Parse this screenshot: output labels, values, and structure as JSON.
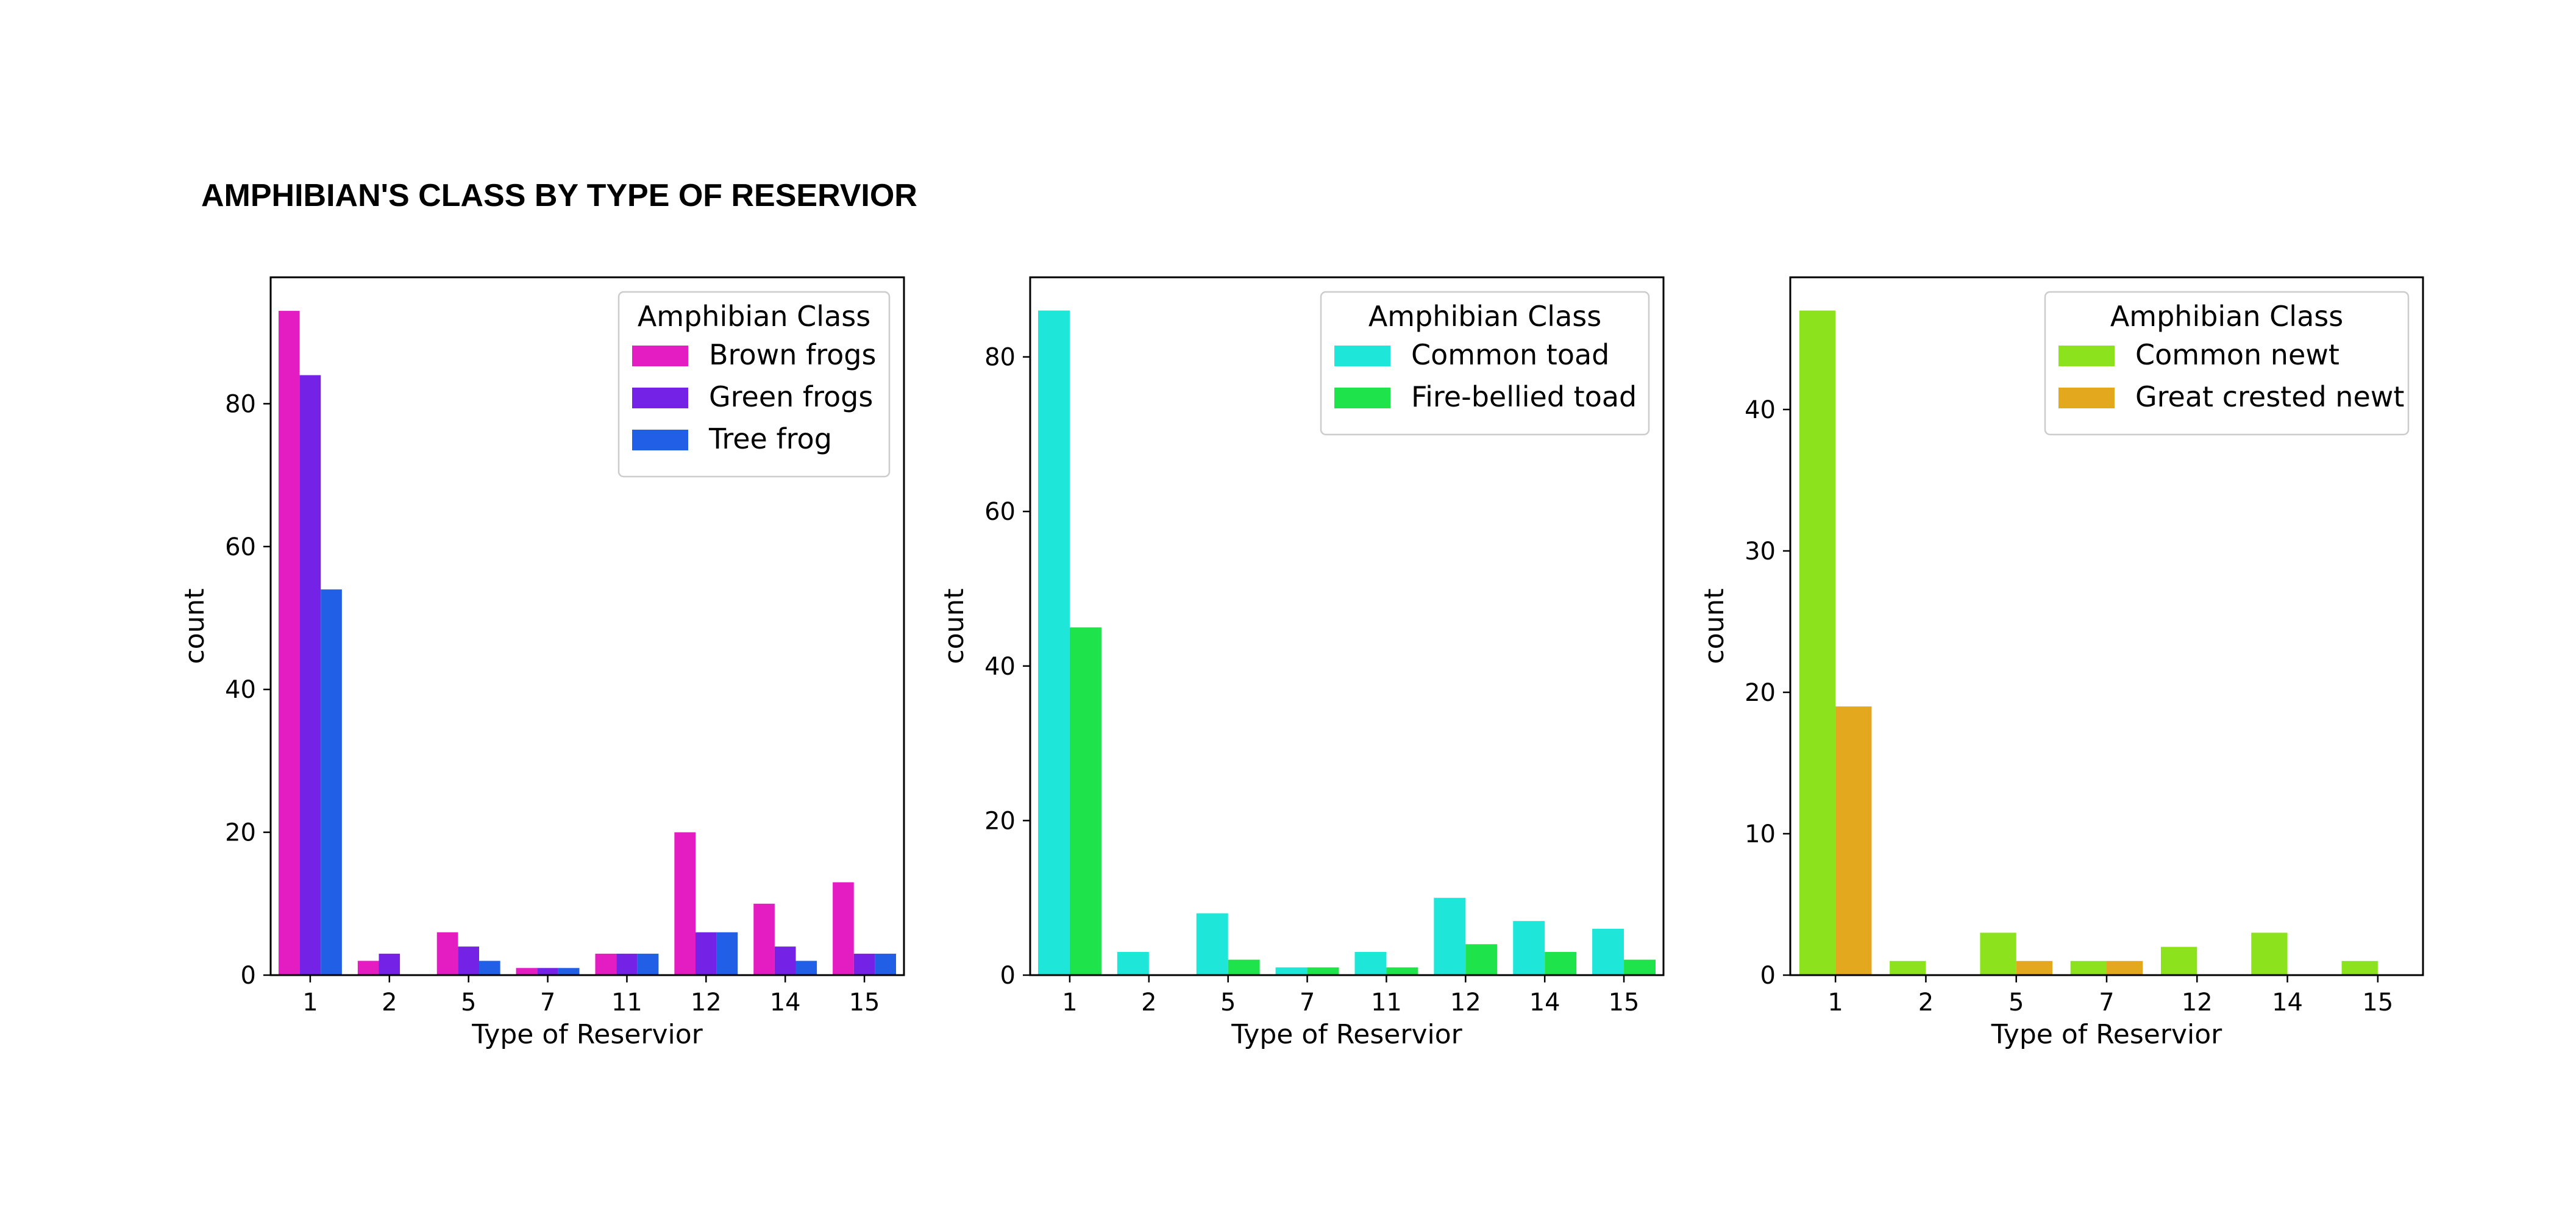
{
  "title": "AMPHIBIAN'S CLASS BY TYPE OF RESERVIOR",
  "chart_data": [
    {
      "type": "bar",
      "categories": [
        "1",
        "2",
        "5",
        "7",
        "11",
        "12",
        "14",
        "15"
      ],
      "xlabel": "Type of Reservior",
      "ylabel": "count",
      "ylim": [
        0,
        97.7
      ],
      "yticks": [
        "0",
        "20",
        "40",
        "60",
        "80"
      ],
      "legend": {
        "title": "Amphibian Class",
        "placement": "upper right"
      },
      "grid": false,
      "series": [
        {
          "name": "Brown frogs",
          "color": "#e31dc2",
          "values": [
            93,
            2,
            6,
            1,
            3,
            20,
            10,
            13
          ]
        },
        {
          "name": "Green frogs",
          "color": "#7422e5",
          "values": [
            84,
            3,
            4,
            1,
            3,
            6,
            4,
            3
          ]
        },
        {
          "name": "Tree frog",
          "color": "#215fe6",
          "values": [
            54,
            0,
            2,
            1,
            3,
            6,
            2,
            3
          ]
        }
      ]
    },
    {
      "type": "bar",
      "categories": [
        "1",
        "2",
        "5",
        "7",
        "11",
        "12",
        "14",
        "15"
      ],
      "xlabel": "Type of Reservior",
      "ylabel": "count",
      "ylim": [
        0,
        90.3
      ],
      "yticks": [
        "0",
        "20",
        "40",
        "60",
        "80"
      ],
      "legend": {
        "title": "Amphibian Class",
        "placement": "upper right"
      },
      "grid": false,
      "series": [
        {
          "name": "Common toad",
          "color": "#1ee6d9",
          "values": [
            86,
            3,
            8,
            1,
            3,
            10,
            7,
            6
          ]
        },
        {
          "name": "Fire-bellied toad",
          "color": "#1ee34b",
          "values": [
            45,
            0,
            2,
            1,
            1,
            4,
            3,
            2
          ]
        }
      ]
    },
    {
      "type": "bar",
      "categories": [
        "1",
        "2",
        "5",
        "7",
        "12",
        "14",
        "15"
      ],
      "xlabel": "Type of Reservior",
      "ylabel": "count",
      "ylim": [
        0,
        49.35
      ],
      "yticks": [
        "0",
        "10",
        "20",
        "30",
        "40"
      ],
      "legend": {
        "title": "Amphibian Class",
        "placement": "upper right"
      },
      "grid": false,
      "series": [
        {
          "name": "Common newt",
          "color": "#8ce31d",
          "values": [
            47,
            1,
            3,
            1,
            2,
            3,
            1
          ]
        },
        {
          "name": "Great crested newt",
          "color": "#e3a81d",
          "values": [
            19,
            0,
            1,
            1,
            0,
            0,
            0
          ]
        }
      ]
    }
  ]
}
